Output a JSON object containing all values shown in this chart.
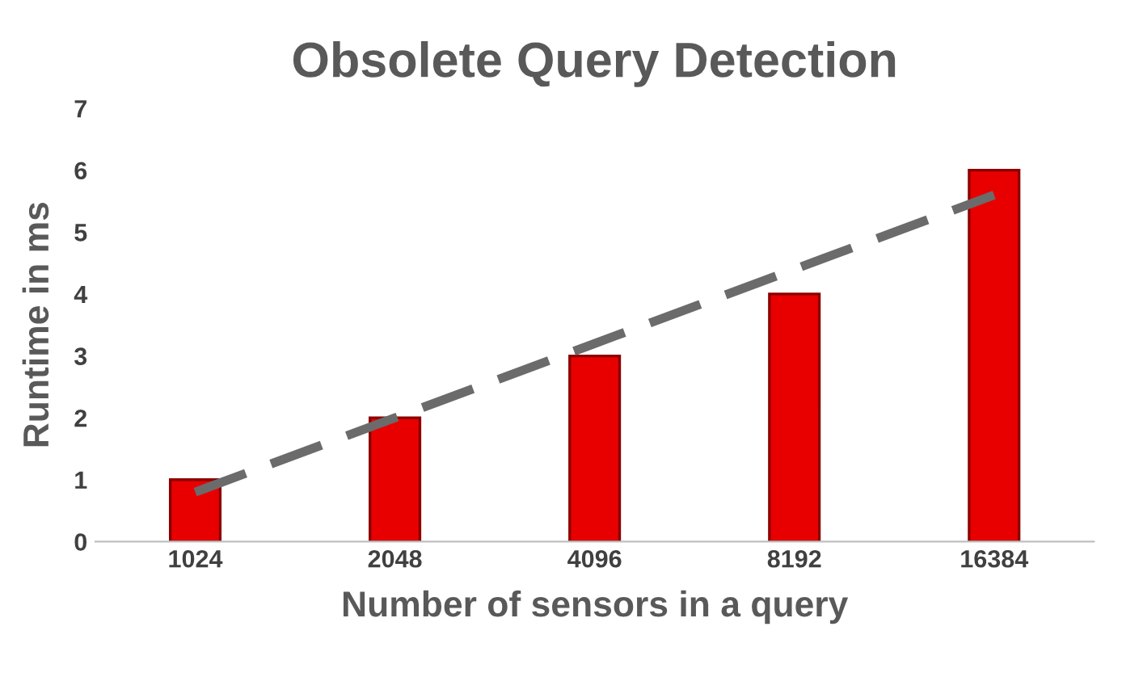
{
  "chart_data": {
    "type": "bar",
    "title": "Obsolete Query Detection",
    "xlabel": "Number of sensors in a query",
    "ylabel": "Runtime in ms",
    "categories": [
      "1024",
      "2048",
      "4096",
      "8192",
      "16384"
    ],
    "series": [
      {
        "color": "#e80000",
        "values": [
          1,
          2,
          3,
          4,
          6
        ]
      },
      {
        "type": "line",
        "color": "#6b6b6b",
        "line_style": "dashed",
        "values": [
          0.8,
          2.0,
          3.2,
          4.4,
          5.6
        ]
      }
    ],
    "ylim": [
      0,
      7
    ],
    "yticks": [
      0,
      1,
      2,
      3,
      4,
      5,
      6,
      7
    ],
    "grid": false,
    "legend": false
  }
}
